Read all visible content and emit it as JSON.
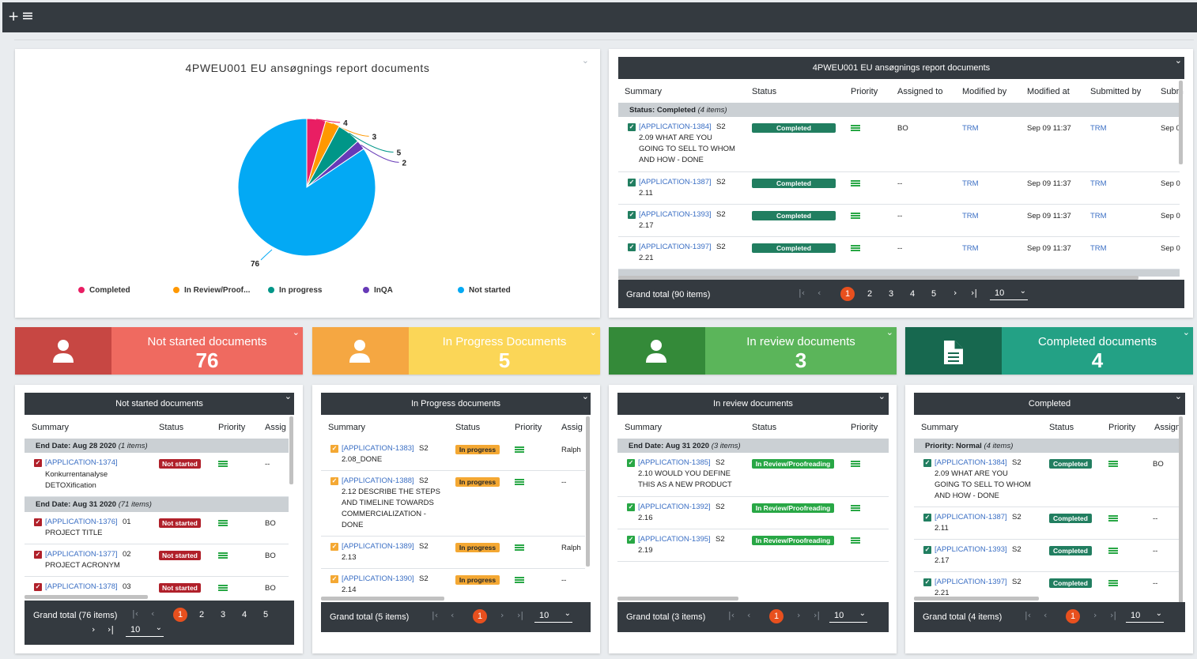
{
  "colors": {
    "completed": "#217e60",
    "in_review": "#28a745",
    "in_progress": "#f4a833",
    "not_started": "#b0202a",
    "accent": "#e8501e",
    "dark": "#343a40"
  },
  "topbar": {
    "add_icon": "+",
    "menu_icon": "≡"
  },
  "pie_widget": {
    "title": "4PWEU001 EU ansøgnings report documents",
    "chart_data": {
      "type": "pie",
      "title": "4PWEU001 EU ansøgnings report documents",
      "categories": [
        "Completed",
        "In Review/Proofreading",
        "In progress",
        "InQA",
        "Not started"
      ],
      "values": [
        4,
        3,
        5,
        2,
        76
      ],
      "colors": [
        "#e91e63",
        "#ff9800",
        "#009688",
        "#673ab7",
        "#03a9f4"
      ],
      "data_labels": [
        "4",
        "3",
        "5",
        "2",
        "76"
      ],
      "legend_placement": "bottom"
    },
    "legend": [
      "Completed",
      "In Review/Proof...",
      "In progress",
      "InQA",
      "Not started"
    ]
  },
  "main_grid": {
    "title": "4PWEU001 EU ansøgnings report documents",
    "columns": [
      "Summary",
      "Status",
      "Priority",
      "Assigned to",
      "Modified by",
      "Modified at",
      "Submitted by",
      "Subm"
    ],
    "group_label": "Status: Completed",
    "group_count": "(4 items)",
    "rows": [
      {
        "id": "[APPLICATION-1384]",
        "summary": "S2\n2.09 WHAT ARE YOU\nGOING TO SELL TO WHOM\nAND HOW - DONE",
        "status": "Completed",
        "assigned": "BO",
        "modified_by": "TRM",
        "modified_at": "Sep 09 11:37",
        "submitted_by": "TRM",
        "submitted_at": "Sep 0"
      },
      {
        "id": "[APPLICATION-1387]",
        "summary": "S2\n2.11",
        "status": "Completed",
        "assigned": "--",
        "modified_by": "TRM",
        "modified_at": "Sep 09 11:37",
        "submitted_by": "TRM",
        "submitted_at": "Sep 0"
      },
      {
        "id": "[APPLICATION-1393]",
        "summary": "S2\n2.17",
        "status": "Completed",
        "assigned": "--",
        "modified_by": "TRM",
        "modified_at": "Sep 09 11:37",
        "submitted_by": "TRM",
        "submitted_at": "Sep 0"
      },
      {
        "id": "[APPLICATION-1397]",
        "summary": "S2\n2.21",
        "status": "Completed",
        "assigned": "--",
        "modified_by": "TRM",
        "modified_at": "Sep 09 11:37",
        "submitted_by": "TRM",
        "submitted_at": "Sep 0"
      }
    ],
    "grand_total": "Grand total (90 items)",
    "pages": [
      "1",
      "2",
      "3",
      "4",
      "5"
    ],
    "page_size": "10"
  },
  "kpis": [
    {
      "label": "Not started documents",
      "value": "76",
      "icon": "user-icon"
    },
    {
      "label": "In Progress Documents",
      "value": "5",
      "icon": "user-icon"
    },
    {
      "label": "In review documents",
      "value": "3",
      "icon": "user-icon"
    },
    {
      "label": "Completed documents",
      "value": "4",
      "icon": "document-icon"
    }
  ],
  "grids": [
    {
      "title": "Not started documents",
      "columns": [
        "Summary",
        "Status",
        "Priority",
        "Assig"
      ],
      "groups": [
        {
          "label": "End Date: Aug 28 2020",
          "count": "(1 items)"
        },
        {
          "label": "End Date: Aug 31 2020",
          "count": "(71 items)"
        }
      ],
      "rows": [
        {
          "id": "[APPLICATION-1374]",
          "summary": "Konkurrentanalyse\nDETOXification",
          "status": "Not started",
          "assigned": "--"
        },
        {
          "id": "[APPLICATION-1376]",
          "summary": "01\nPROJECT TITLE",
          "status": "Not started",
          "assigned": "BO"
        },
        {
          "id": "[APPLICATION-1377]",
          "summary": "02\nPROJECT ACRONYM",
          "status": "Not started",
          "assigned": "BO"
        },
        {
          "id": "[APPLICATION-1378]",
          "summary": "03",
          "status": "Not started",
          "assigned": "BO"
        }
      ],
      "grand_total": "Grand total (76 items)",
      "pages": [
        "1",
        "2",
        "3",
        "4",
        "5"
      ],
      "page_size": "10"
    },
    {
      "title": "In Progress documents",
      "columns": [
        "Summary",
        "Status",
        "Priority",
        "Assig"
      ],
      "rows": [
        {
          "id": "[APPLICATION-1383]",
          "summary": "S2\n2.08_DONE",
          "status": "In progress",
          "assigned": "Ralph"
        },
        {
          "id": "[APPLICATION-1388]",
          "summary": "S2\n2.12 DESCRIBE THE STEPS\nAND TIMELINE TOWARDS\nCOMMERCIALIZATION -\nDONE",
          "status": "In progress",
          "assigned": "--"
        },
        {
          "id": "[APPLICATION-1389]",
          "summary": "S2\n2.13",
          "status": "In progress",
          "assigned": "Ralph"
        },
        {
          "id": "[APPLICATION-1390]",
          "summary": "S2\n2.14",
          "status": "In progress",
          "assigned": "--"
        }
      ],
      "grand_total": "Grand total (5 items)",
      "pages": [
        "1"
      ],
      "page_size": "10"
    },
    {
      "title": "In review documents",
      "columns": [
        "Summary",
        "Status",
        "Priority"
      ],
      "groups": [
        {
          "label": "End Date: Aug 31 2020",
          "count": "(3 items)"
        }
      ],
      "rows": [
        {
          "id": "[APPLICATION-1385]",
          "summary": "S2\n2.10 WOULD YOU DEFINE\nTHIS AS A NEW PRODUCT",
          "status": "In Review/Proofreading"
        },
        {
          "id": "[APPLICATION-1392]",
          "summary": "S2\n2.16",
          "status": "In Review/Proofreading"
        },
        {
          "id": "[APPLICATION-1395]",
          "summary": "S2\n2.19",
          "status": "In Review/Proofreading"
        }
      ],
      "grand_total": "Grand total (3 items)",
      "pages": [
        "1"
      ],
      "page_size": "10"
    },
    {
      "title": "Completed",
      "columns": [
        "Summary",
        "Status",
        "Priority",
        "Assign"
      ],
      "groups": [
        {
          "label": "Priority: Normal",
          "count": "(4 items)"
        }
      ],
      "rows": [
        {
          "id": "[APPLICATION-1384]",
          "summary": "S2\n2.09 WHAT ARE YOU\nGOING TO SELL TO WHOM\nAND HOW - DONE",
          "status": "Completed",
          "assigned": "BO"
        },
        {
          "id": "[APPLICATION-1387]",
          "summary": "S2\n2.11",
          "status": "Completed",
          "assigned": "--"
        },
        {
          "id": "[APPLICATION-1393]",
          "summary": "S2\n2.17",
          "status": "Completed",
          "assigned": "--"
        },
        {
          "id": "[APPLICATION-1397]",
          "summary": "S2\n2.21",
          "status": "Completed",
          "assigned": "--"
        }
      ],
      "grand_total": "Grand total (4 items)",
      "pages": [
        "1"
      ],
      "page_size": "10"
    }
  ]
}
